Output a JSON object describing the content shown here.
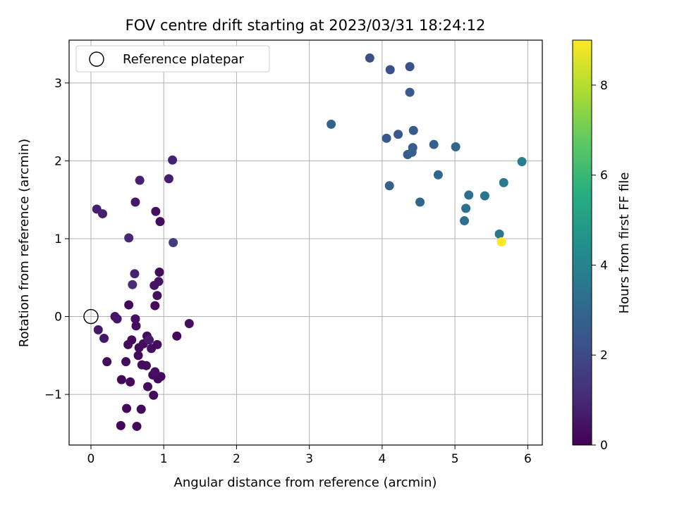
{
  "chart_data": {
    "type": "scatter",
    "title": "FOV centre drift starting at 2023/03/31 18:24:12",
    "xlabel": "Angular distance from reference (arcmin)",
    "ylabel": "Rotation from reference (arcmin)",
    "xlim": [
      -0.3,
      6.2
    ],
    "ylim": [
      -1.65,
      3.55
    ],
    "xticks": [
      0,
      1,
      2,
      3,
      4,
      5,
      6
    ],
    "yticks": [
      -1,
      0,
      1,
      2,
      3
    ],
    "grid": true,
    "legend": {
      "location": "upper-left",
      "entries": [
        "Reference platepar"
      ]
    },
    "reference_point": {
      "x": 0,
      "y": 0
    },
    "colorbar": {
      "label": "Hours from first FF file",
      "colormap": "viridis",
      "range": [
        0,
        9
      ],
      "ticks": [
        0,
        2,
        4,
        6,
        8
      ]
    },
    "points": [
      {
        "x": 0.08,
        "y": 1.38,
        "h": 0.8
      },
      {
        "x": 0.16,
        "y": 1.32,
        "h": 0.8
      },
      {
        "x": 0.52,
        "y": 1.01,
        "h": 1.0
      },
      {
        "x": 0.61,
        "y": 1.47,
        "h": 0.6
      },
      {
        "x": 0.67,
        "y": 1.75,
        "h": 0.8
      },
      {
        "x": 0.89,
        "y": 1.35,
        "h": 0.4
      },
      {
        "x": 0.95,
        "y": 1.22,
        "h": 0.3
      },
      {
        "x": 1.07,
        "y": 1.77,
        "h": 0.7
      },
      {
        "x": 1.12,
        "y": 2.01,
        "h": 0.9
      },
      {
        "x": 1.13,
        "y": 0.95,
        "h": 1.6
      },
      {
        "x": 0.6,
        "y": 0.55,
        "h": 0.9
      },
      {
        "x": 0.57,
        "y": 0.41,
        "h": 1.2
      },
      {
        "x": 0.94,
        "y": 0.57,
        "h": 0.3
      },
      {
        "x": 0.93,
        "y": 0.45,
        "h": 0.5
      },
      {
        "x": 0.87,
        "y": 0.4,
        "h": 0.5
      },
      {
        "x": 0.91,
        "y": 0.27,
        "h": 0.4
      },
      {
        "x": 0.88,
        "y": 0.14,
        "h": 0.3
      },
      {
        "x": 0.52,
        "y": 0.15,
        "h": 0.2
      },
      {
        "x": 0.33,
        "y": 0.0,
        "h": 0.5
      },
      {
        "x": 0.36,
        "y": -0.03,
        "h": 0.6
      },
      {
        "x": 0.61,
        "y": -0.03,
        "h": 0.4
      },
      {
        "x": 0.62,
        "y": -0.12,
        "h": 0.3
      },
      {
        "x": 0.1,
        "y": -0.17,
        "h": 0.6
      },
      {
        "x": 0.18,
        "y": -0.28,
        "h": 0.6
      },
      {
        "x": 0.56,
        "y": -0.3,
        "h": 0.3
      },
      {
        "x": 0.51,
        "y": -0.36,
        "h": 0.3
      },
      {
        "x": 0.66,
        "y": -0.4,
        "h": 0.2
      },
      {
        "x": 0.72,
        "y": -0.35,
        "h": 0.3
      },
      {
        "x": 0.77,
        "y": -0.25,
        "h": 0.4
      },
      {
        "x": 0.8,
        "y": -0.3,
        "h": 0.7
      },
      {
        "x": 0.83,
        "y": -0.41,
        "h": 0.3
      },
      {
        "x": 0.91,
        "y": -0.36,
        "h": 0.3
      },
      {
        "x": 0.65,
        "y": -0.5,
        "h": 0.2
      },
      {
        "x": 1.18,
        "y": -0.25,
        "h": 0.2
      },
      {
        "x": 1.35,
        "y": -0.09,
        "h": 0.4
      },
      {
        "x": 0.22,
        "y": -0.58,
        "h": 0.3
      },
      {
        "x": 0.48,
        "y": -0.58,
        "h": 0.3
      },
      {
        "x": 0.7,
        "y": -0.62,
        "h": 0.3
      },
      {
        "x": 0.76,
        "y": -0.63,
        "h": 0.3
      },
      {
        "x": 0.88,
        "y": -0.71,
        "h": 0.4
      },
      {
        "x": 0.85,
        "y": -0.75,
        "h": 0.3
      },
      {
        "x": 0.92,
        "y": -0.8,
        "h": 0.2
      },
      {
        "x": 0.96,
        "y": -0.77,
        "h": 0.2
      },
      {
        "x": 0.42,
        "y": -0.81,
        "h": 0.2
      },
      {
        "x": 0.54,
        "y": -0.84,
        "h": 0.2
      },
      {
        "x": 0.78,
        "y": -0.9,
        "h": 0.3
      },
      {
        "x": 0.86,
        "y": -1.01,
        "h": 0.3
      },
      {
        "x": 0.49,
        "y": -1.18,
        "h": 0.2
      },
      {
        "x": 0.69,
        "y": -1.19,
        "h": 0.2
      },
      {
        "x": 0.41,
        "y": -1.4,
        "h": 0.2
      },
      {
        "x": 0.63,
        "y": -1.41,
        "h": 0.2
      },
      {
        "x": 3.3,
        "y": 2.47,
        "h": 2.9
      },
      {
        "x": 3.83,
        "y": 3.32,
        "h": 2.2
      },
      {
        "x": 4.11,
        "y": 3.17,
        "h": 2.3
      },
      {
        "x": 4.38,
        "y": 3.21,
        "h": 2.3
      },
      {
        "x": 4.38,
        "y": 2.88,
        "h": 2.6
      },
      {
        "x": 4.06,
        "y": 2.29,
        "h": 2.5
      },
      {
        "x": 4.22,
        "y": 2.34,
        "h": 2.5
      },
      {
        "x": 4.43,
        "y": 2.39,
        "h": 2.6
      },
      {
        "x": 4.42,
        "y": 2.17,
        "h": 2.7
      },
      {
        "x": 4.35,
        "y": 2.08,
        "h": 2.6
      },
      {
        "x": 4.41,
        "y": 2.11,
        "h": 2.8
      },
      {
        "x": 4.71,
        "y": 2.21,
        "h": 2.8
      },
      {
        "x": 5.01,
        "y": 2.18,
        "h": 3.0
      },
      {
        "x": 4.1,
        "y": 1.68,
        "h": 2.8
      },
      {
        "x": 4.77,
        "y": 1.82,
        "h": 3.0
      },
      {
        "x": 4.52,
        "y": 1.47,
        "h": 3.0
      },
      {
        "x": 5.19,
        "y": 1.56,
        "h": 3.3
      },
      {
        "x": 5.15,
        "y": 1.39,
        "h": 3.3
      },
      {
        "x": 5.41,
        "y": 1.55,
        "h": 3.5
      },
      {
        "x": 5.13,
        "y": 1.23,
        "h": 3.3
      },
      {
        "x": 5.67,
        "y": 1.72,
        "h": 3.7
      },
      {
        "x": 5.92,
        "y": 1.99,
        "h": 3.9
      },
      {
        "x": 5.61,
        "y": 1.06,
        "h": 3.6
      },
      {
        "x": 5.64,
        "y": 0.96,
        "h": 9.0
      }
    ]
  }
}
